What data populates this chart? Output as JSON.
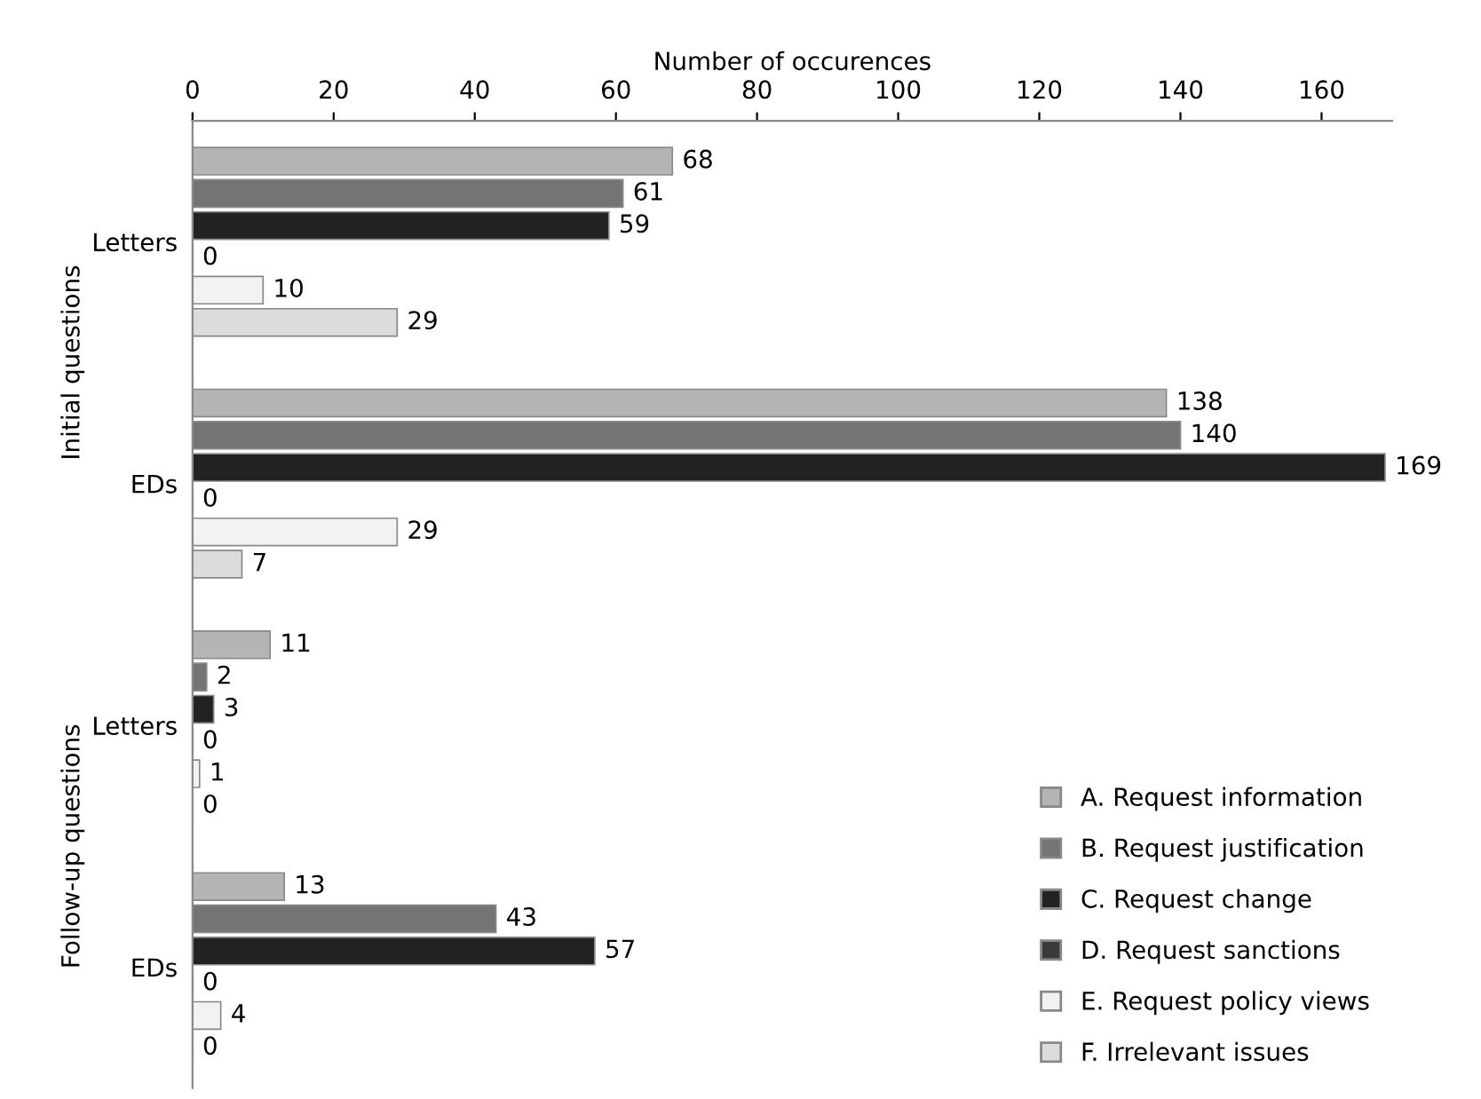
{
  "chart_data": {
    "type": "bar",
    "orientation": "horizontal",
    "xlabel": "Number of occurences",
    "categories": [
      "Letters",
      "EDs",
      "Letters",
      "EDs"
    ],
    "annotations": [
      "Initial questions",
      "Follow-up questions"
    ],
    "series": [
      {
        "name": "A. Request information",
        "color": "#b4b4b4",
        "values": [
          68,
          138,
          11,
          13
        ]
      },
      {
        "name": "B. Request justification",
        "color": "#747474",
        "values": [
          61,
          140,
          2,
          43
        ]
      },
      {
        "name": "C. Request change",
        "color": "#222222",
        "values": [
          59,
          169,
          3,
          57
        ]
      },
      {
        "name": "D. Request sanctions",
        "color": "#3a3a3a",
        "values": [
          0,
          0,
          0,
          0
        ]
      },
      {
        "name": "E. Request policy views",
        "color": "#f2f2f2",
        "values": [
          10,
          29,
          1,
          4
        ]
      },
      {
        "name": "F. Irrelevant issues",
        "color": "#dcdcdc",
        "values": [
          29,
          7,
          0,
          0
        ]
      }
    ],
    "xlim": [
      0,
      170
    ],
    "xticks": [
      0,
      20,
      40,
      60,
      80,
      100,
      120,
      140,
      160
    ],
    "data_labels": true,
    "legend": "bottom right"
  }
}
